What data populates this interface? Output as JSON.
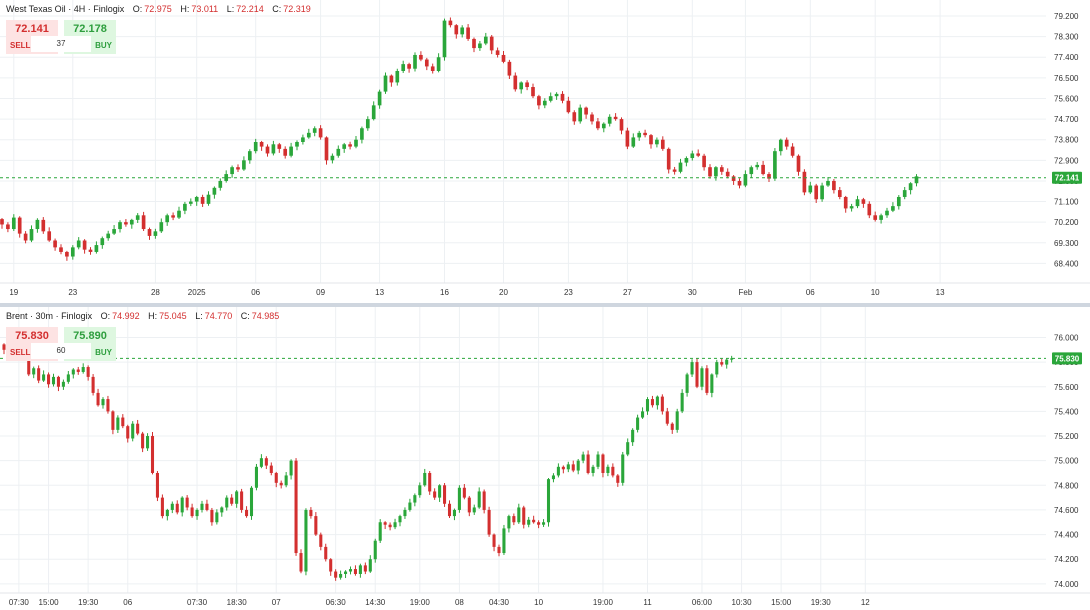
{
  "colors": {
    "up": "#2aa63a",
    "down": "#d32f2f",
    "grid": "#edf0f3",
    "last": "#2aa63a"
  },
  "chart_data": [
    {
      "type": "candlestick",
      "symbol": "West Texas Oil",
      "interval": "4H",
      "source": "Finlogix",
      "ohlc": {
        "o_label": "O:",
        "o": "72.975",
        "h_label": "H:",
        "h": "73.011",
        "l_label": "L:",
        "l": "72.214",
        "c_label": "C:",
        "c": "72.319"
      },
      "trade": {
        "sell_price": "72.141",
        "buy_price": "72.178",
        "sell_label": "SELL",
        "buy_label": "BUY",
        "quantity": "37"
      },
      "last_price": "72.141",
      "last_value": 72.141,
      "ylim": [
        67.85,
        79.55
      ],
      "yticks": [
        "79.200",
        "78.300",
        "77.400",
        "76.500",
        "75.600",
        "74.700",
        "73.800",
        "72.900",
        "72.000",
        "71.100",
        "70.200",
        "69.300",
        "68.400"
      ],
      "xticks": [
        {
          "label": "19",
          "i": 2
        },
        {
          "label": "23",
          "i": 12
        },
        {
          "label": "28",
          "i": 26
        },
        {
          "label": "2025",
          "i": 33
        },
        {
          "label": "06",
          "i": 43
        },
        {
          "label": "09",
          "i": 54
        },
        {
          "label": "13",
          "i": 64
        },
        {
          "label": "16",
          "i": 75
        },
        {
          "label": "20",
          "i": 85
        },
        {
          "label": "23",
          "i": 96
        },
        {
          "label": "27",
          "i": 106
        },
        {
          "label": "30",
          "i": 117
        },
        {
          "label": "Feb",
          "i": 126
        },
        {
          "label": "06",
          "i": 137
        },
        {
          "label": "10",
          "i": 148
        },
        {
          "label": "13",
          "i": 159
        }
      ],
      "close": [
        70.1,
        69.9,
        70.4,
        69.7,
        69.4,
        69.9,
        70.3,
        69.8,
        69.4,
        69.1,
        68.9,
        68.7,
        69.1,
        69.4,
        69.0,
        68.9,
        69.2,
        69.5,
        69.7,
        69.9,
        70.2,
        70.1,
        70.3,
        70.5,
        69.9,
        69.6,
        69.8,
        70.2,
        70.5,
        70.4,
        70.7,
        71.0,
        71.1,
        71.3,
        71.0,
        71.4,
        71.7,
        72.0,
        72.3,
        72.6,
        72.5,
        72.9,
        73.3,
        73.7,
        73.5,
        73.2,
        73.6,
        73.4,
        73.1,
        73.5,
        73.7,
        73.9,
        74.1,
        74.3,
        73.9,
        72.9,
        73.1,
        73.4,
        73.6,
        73.5,
        73.8,
        74.3,
        74.7,
        75.3,
        75.9,
        76.6,
        76.3,
        76.8,
        77.1,
        76.9,
        77.5,
        77.3,
        77.0,
        76.8,
        77.4,
        79.0,
        78.8,
        78.4,
        78.7,
        78.2,
        77.8,
        78.0,
        78.3,
        77.7,
        77.5,
        77.2,
        76.6,
        76.0,
        76.3,
        76.1,
        75.7,
        75.3,
        75.5,
        75.7,
        75.8,
        75.5,
        75.0,
        74.6,
        75.2,
        74.9,
        74.6,
        74.3,
        74.5,
        74.8,
        74.7,
        74.2,
        73.5,
        73.9,
        74.1,
        74.0,
        73.6,
        73.8,
        73.4,
        72.5,
        72.4,
        72.8,
        73.0,
        73.2,
        73.1,
        72.6,
        72.2,
        72.6,
        72.4,
        72.2,
        72.0,
        71.8,
        72.3,
        72.6,
        72.7,
        72.3,
        72.1,
        73.3,
        73.8,
        73.5,
        73.1,
        72.4,
        71.5,
        71.8,
        71.2,
        71.8,
        72.0,
        71.6,
        71.3,
        70.8,
        70.9,
        71.2,
        71.0,
        70.5,
        70.3,
        70.5,
        70.7,
        70.9,
        71.3,
        71.6,
        71.9,
        72.2
      ],
      "xlabel": "",
      "ylabel": ""
    },
    {
      "type": "candlestick",
      "symbol": "Brent",
      "interval": "30m",
      "source": "Finlogix",
      "ohlc": {
        "o_label": "O:",
        "o": "74.992",
        "h_label": "H:",
        "h": "75.045",
        "l_label": "L:",
        "l": "74.770",
        "c_label": "C:",
        "c": "74.985"
      },
      "trade": {
        "sell_price": "75.830",
        "buy_price": "75.890",
        "sell_label": "SELL",
        "buy_label": "BUY",
        "quantity": "60"
      },
      "last_price": "75.830",
      "last_value": 75.83,
      "ylim": [
        73.95,
        76.15
      ],
      "yticks": [
        "76.000",
        "75.800",
        "75.600",
        "75.400",
        "75.200",
        "75.000",
        "74.800",
        "74.600",
        "74.400",
        "74.200",
        "74.000"
      ],
      "xticks": [
        {
          "label": "07:30",
          "i": 3
        },
        {
          "label": "15:00",
          "i": 9
        },
        {
          "label": "19:30",
          "i": 17
        },
        {
          "label": "06",
          "i": 25
        },
        {
          "label": "07:30",
          "i": 39
        },
        {
          "label": "18:30",
          "i": 47
        },
        {
          "label": "07",
          "i": 55
        },
        {
          "label": "06:30",
          "i": 67
        },
        {
          "label": "14:30",
          "i": 75
        },
        {
          "label": "19:00",
          "i": 84
        },
        {
          "label": "08",
          "i": 92
        },
        {
          "label": "04:30",
          "i": 100
        },
        {
          "label": "10",
          "i": 108
        },
        {
          "label": "19:00",
          "i": 121
        },
        {
          "label": "11",
          "i": 130
        },
        {
          "label": "06:00",
          "i": 141
        },
        {
          "label": "10:30",
          "i": 149
        },
        {
          "label": "15:00",
          "i": 157
        },
        {
          "label": "19:30",
          "i": 165
        },
        {
          "label": "12",
          "i": 174
        }
      ],
      "close": [
        75.9,
        75.85,
        75.95,
        76.05,
        75.85,
        75.7,
        75.75,
        75.65,
        75.7,
        75.62,
        75.68,
        75.6,
        75.64,
        75.7,
        75.74,
        75.72,
        75.76,
        75.68,
        75.55,
        75.45,
        75.5,
        75.4,
        75.25,
        75.35,
        75.28,
        75.18,
        75.3,
        75.22,
        75.1,
        75.2,
        74.9,
        74.7,
        74.55,
        74.6,
        74.65,
        74.58,
        74.7,
        74.62,
        74.55,
        74.6,
        74.65,
        74.6,
        74.5,
        74.58,
        74.62,
        74.7,
        74.65,
        74.75,
        74.6,
        74.55,
        74.78,
        74.95,
        75.02,
        74.96,
        74.9,
        74.82,
        74.8,
        74.88,
        75.0,
        74.25,
        74.1,
        74.6,
        74.55,
        74.4,
        74.3,
        74.2,
        74.1,
        74.05,
        74.08,
        74.1,
        74.12,
        74.08,
        74.15,
        74.1,
        74.2,
        74.35,
        74.5,
        74.48,
        74.46,
        74.5,
        74.55,
        74.6,
        74.66,
        74.72,
        74.8,
        74.9,
        74.75,
        74.7,
        74.8,
        74.65,
        74.55,
        74.6,
        74.78,
        74.7,
        74.58,
        74.62,
        74.75,
        74.6,
        74.4,
        74.3,
        74.25,
        74.45,
        74.55,
        74.5,
        74.62,
        74.48,
        74.52,
        74.5,
        74.48,
        74.5,
        74.85,
        74.88,
        74.95,
        74.93,
        74.97,
        74.92,
        75.0,
        75.05,
        74.9,
        74.95,
        75.05,
        74.9,
        74.95,
        74.88,
        74.82,
        75.05,
        75.15,
        75.25,
        75.35,
        75.4,
        75.5,
        75.45,
        75.52,
        75.4,
        75.3,
        75.25,
        75.4,
        75.55,
        75.7,
        75.8,
        75.6,
        75.75,
        75.55,
        75.7,
        75.8,
        75.78,
        75.82,
        75.83
      ]
    }
  ]
}
